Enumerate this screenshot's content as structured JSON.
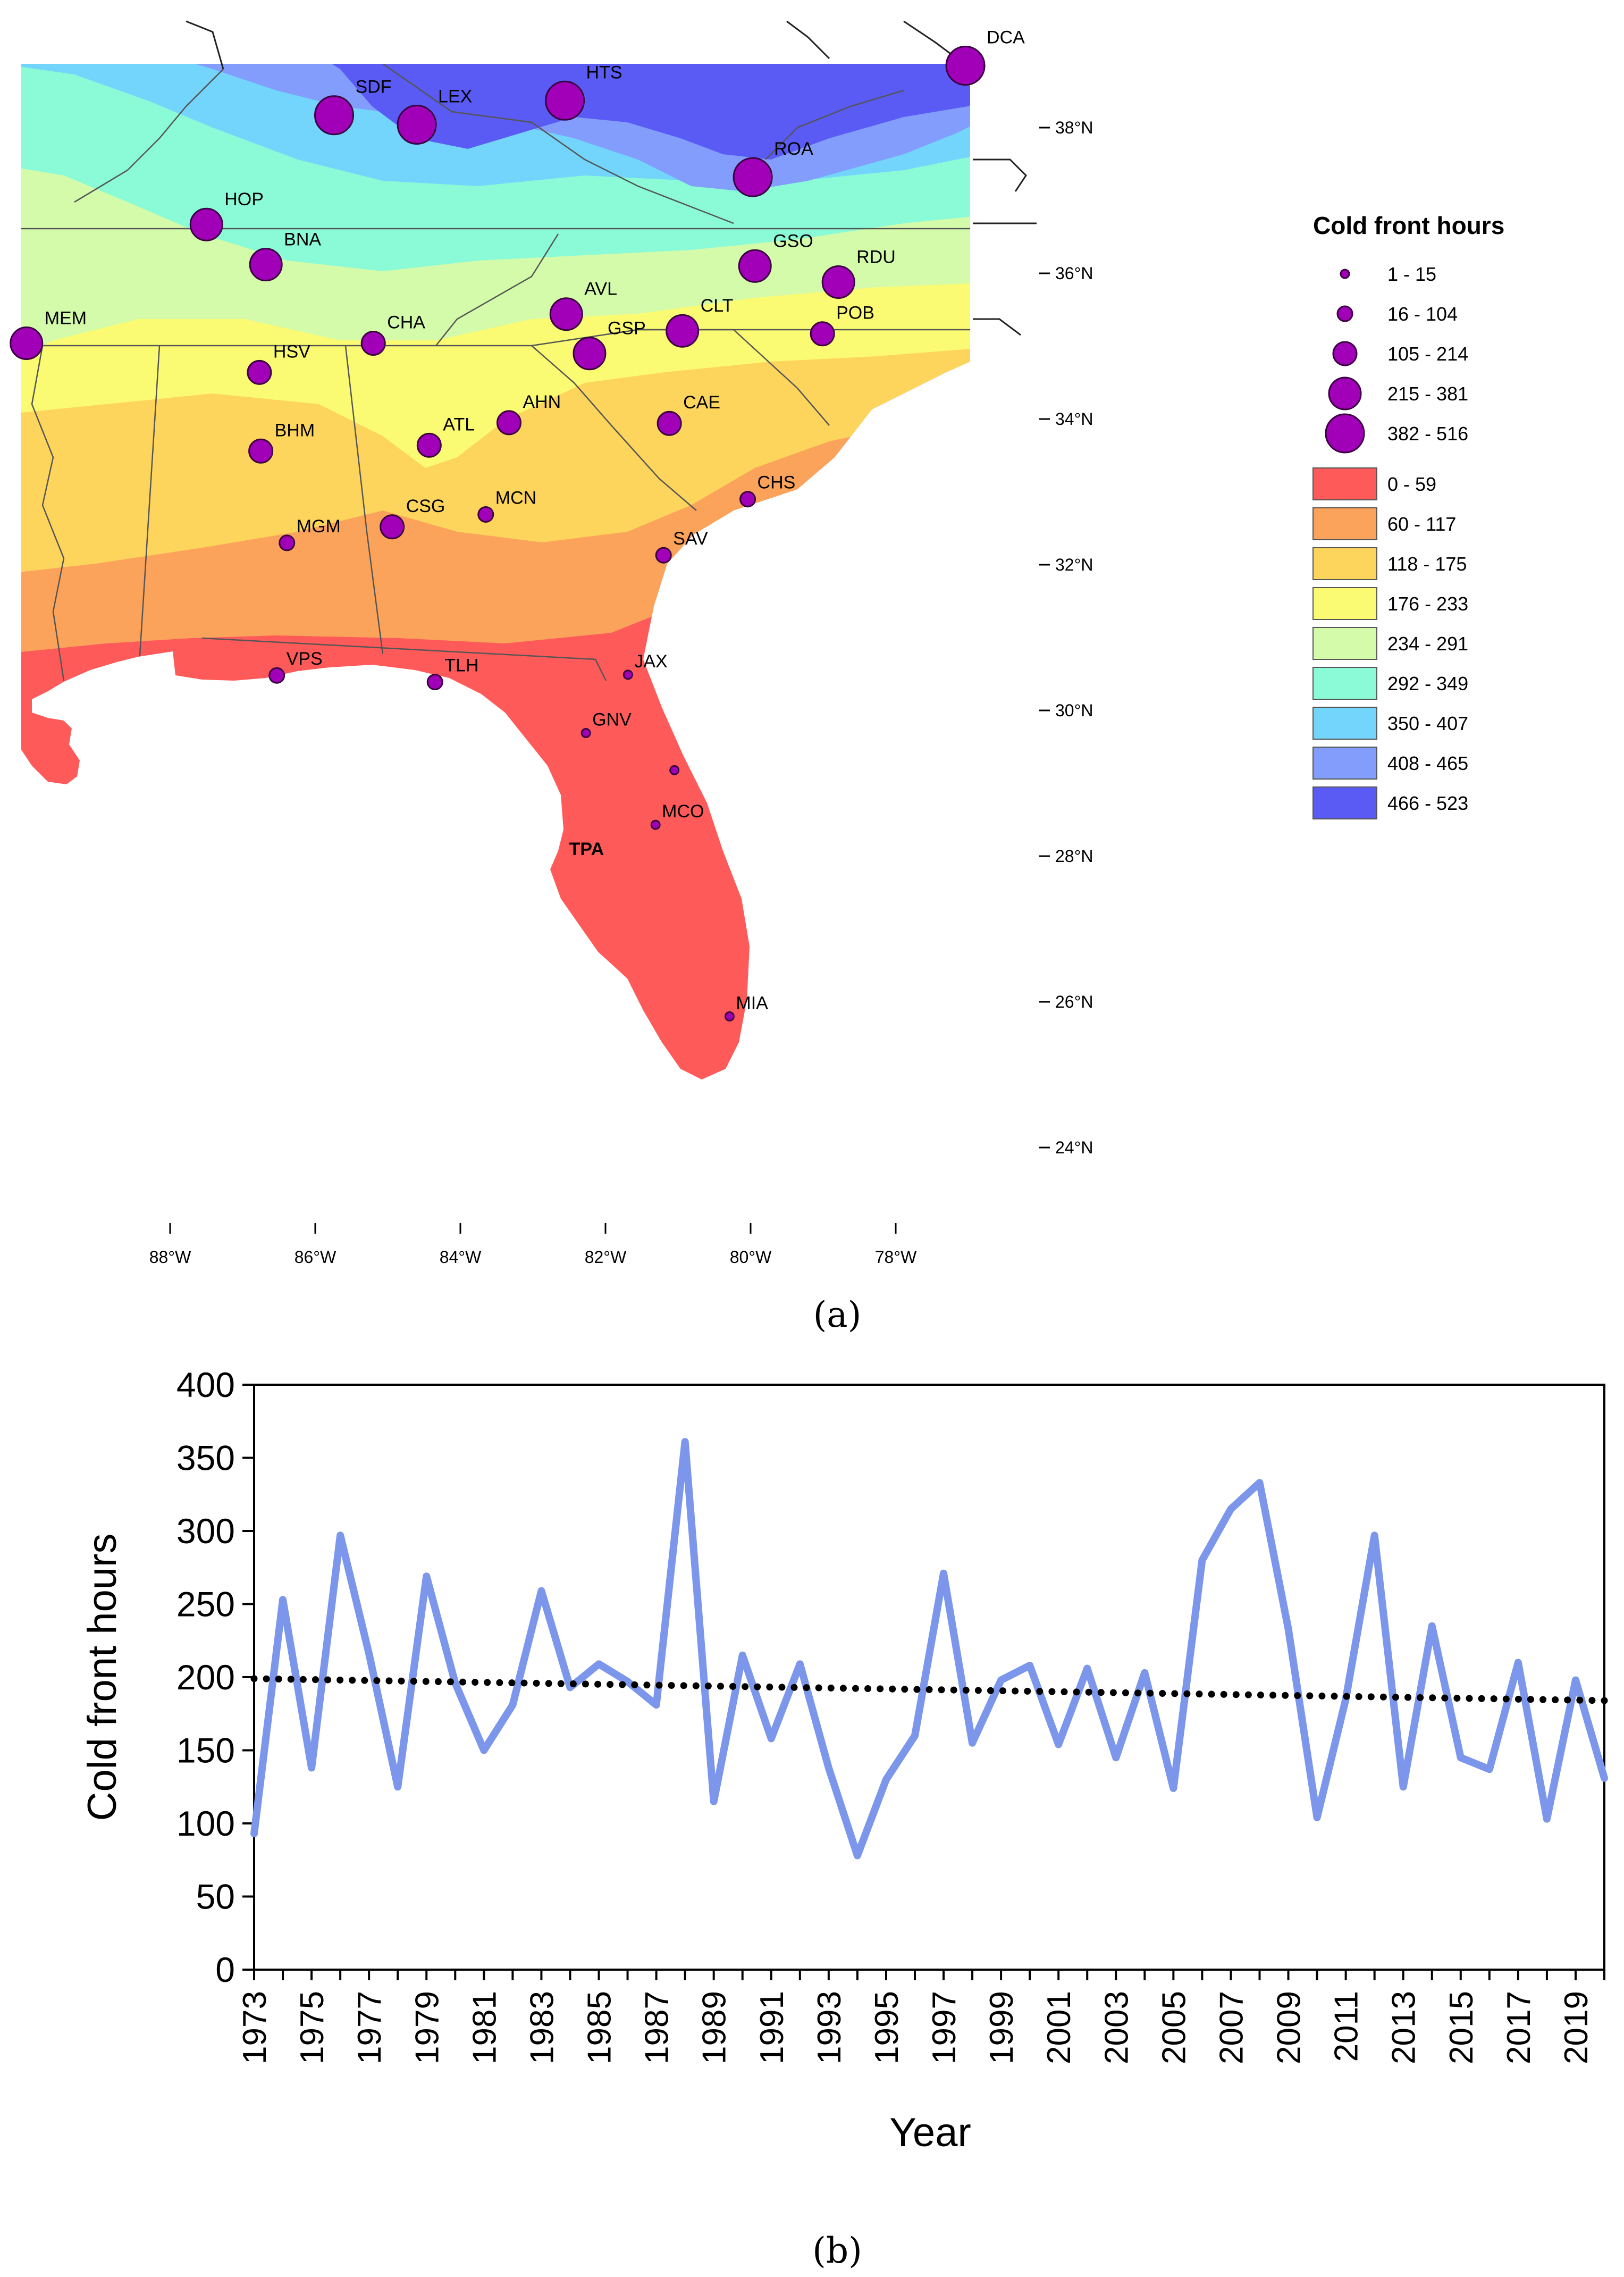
{
  "panel_a": {
    "label_text": "(a)",
    "legend": {
      "title": "Cold front hours",
      "circle_classes": [
        {
          "label": "1 - 15"
        },
        {
          "label": "16 - 104"
        },
        {
          "label": "105 - 214"
        },
        {
          "label": "215 - 381"
        },
        {
          "label": "382 - 516"
        }
      ],
      "color_classes": [
        {
          "label": "0 - 59",
          "color": "#ff5a5a"
        },
        {
          "label": "60 - 117",
          "color": "#fba35a"
        },
        {
          "label": "118 - 175",
          "color": "#fdd55c"
        },
        {
          "label": "176 - 233",
          "color": "#fbfb73"
        },
        {
          "label": "234 - 291",
          "color": "#d3fbaa"
        },
        {
          "label": "292 - 349",
          "color": "#8afbd6"
        },
        {
          "label": "350 - 407",
          "color": "#73d5fb"
        },
        {
          "label": "408 - 465",
          "color": "#829dfb"
        },
        {
          "label": "466 - 523",
          "color": "#5a5af5"
        }
      ]
    },
    "lat_ticks": [
      "38°N",
      "36°N",
      "34°N",
      "32°N",
      "30°N",
      "28°N",
      "26°N",
      "24°N"
    ],
    "lon_ticks": [
      "88°W",
      "86°W",
      "84°W",
      "82°W",
      "80°W",
      "78°W"
    ],
    "stations": [
      {
        "code": "SDF",
        "lon": -85.74,
        "lat": 38.17,
        "size_class": 4
      },
      {
        "code": "LEX",
        "lon": -84.6,
        "lat": 38.04,
        "size_class": 4
      },
      {
        "code": "HTS",
        "lon": -82.56,
        "lat": 38.37,
        "size_class": 4
      },
      {
        "code": "DCA",
        "lon": -77.04,
        "lat": 38.85,
        "size_class": 4
      },
      {
        "code": "ROA",
        "lon": -79.97,
        "lat": 37.32,
        "size_class": 4
      },
      {
        "code": "HOP",
        "lon": -87.5,
        "lat": 36.67,
        "size_class": 3
      },
      {
        "code": "BNA",
        "lon": -86.68,
        "lat": 36.12,
        "size_class": 3
      },
      {
        "code": "GSO",
        "lon": -79.94,
        "lat": 36.1,
        "size_class": 3
      },
      {
        "code": "RDU",
        "lon": -78.79,
        "lat": 35.88,
        "size_class": 3
      },
      {
        "code": "MEM",
        "lon": -89.98,
        "lat": 35.04,
        "size_class": 3
      },
      {
        "code": "CHA",
        "lon": -85.2,
        "lat": 35.04,
        "size_class": 2
      },
      {
        "code": "AVL",
        "lon": -82.54,
        "lat": 35.44,
        "size_class": 3
      },
      {
        "code": "CLT",
        "lon": -80.94,
        "lat": 35.21,
        "size_class": 3
      },
      {
        "code": "GSP",
        "lon": -82.22,
        "lat": 34.9,
        "size_class": 3
      },
      {
        "code": "POB",
        "lon": -79.01,
        "lat": 35.17,
        "size_class": 2
      },
      {
        "code": "HSV",
        "lon": -86.77,
        "lat": 34.64,
        "size_class": 2
      },
      {
        "code": "AHN",
        "lon": -83.33,
        "lat": 33.95,
        "size_class": 2
      },
      {
        "code": "CAE",
        "lon": -81.12,
        "lat": 33.94,
        "size_class": 2
      },
      {
        "code": "ATL",
        "lon": -84.43,
        "lat": 33.64,
        "size_class": 2
      },
      {
        "code": "BHM",
        "lon": -86.75,
        "lat": 33.56,
        "size_class": 2
      },
      {
        "code": "CHS",
        "lon": -80.04,
        "lat": 32.9,
        "size_class": 1
      },
      {
        "code": "MCN",
        "lon": -83.65,
        "lat": 32.69,
        "size_class": 1
      },
      {
        "code": "CSG",
        "lon": -84.94,
        "lat": 32.52,
        "size_class": 2
      },
      {
        "code": "MGM",
        "lon": -86.39,
        "lat": 32.3,
        "size_class": 1
      },
      {
        "code": "SAV",
        "lon": -81.2,
        "lat": 32.13,
        "size_class": 1
      },
      {
        "code": "VPS",
        "lon": -86.53,
        "lat": 30.48,
        "size_class": 1
      },
      {
        "code": "TLH",
        "lon": -84.35,
        "lat": 30.39,
        "size_class": 1
      },
      {
        "code": "JAX",
        "lon": -81.69,
        "lat": 30.49,
        "size_class": 0
      },
      {
        "code": "GNV",
        "lon": -82.27,
        "lat": 29.69,
        "size_class": 0
      },
      {
        "code": "",
        "lon": -81.05,
        "lat": 29.18,
        "size_class": 0
      },
      {
        "code": "MCO",
        "lon": -81.31,
        "lat": 28.43,
        "size_class": 0
      },
      {
        "code": "TPA",
        "lon": -82.53,
        "lat": 27.97,
        "size_class": -1
      },
      {
        "code": "MIA",
        "lon": -80.29,
        "lat": 25.8,
        "size_class": 0
      }
    ]
  },
  "panel_b": {
    "label_text": "(b)",
    "chart_data": {
      "type": "line",
      "xlabel": "Year",
      "ylabel": "Cold front hours",
      "ylim": [
        0,
        400
      ],
      "yticks": [
        0,
        50,
        100,
        150,
        200,
        250,
        300,
        350,
        400
      ],
      "xtick_labels": [
        "1973",
        "1975",
        "1977",
        "1979",
        "1981",
        "1983",
        "1985",
        "1987",
        "1989",
        "1991",
        "1993",
        "1995",
        "1997",
        "1999",
        "2001",
        "2003",
        "2005",
        "2007",
        "2009",
        "2011",
        "2013",
        "2015",
        "2017",
        "2019"
      ],
      "years": [
        1973,
        1974,
        1975,
        1976,
        1977,
        1978,
        1979,
        1980,
        1981,
        1982,
        1983,
        1984,
        1985,
        1986,
        1987,
        1988,
        1989,
        1990,
        1991,
        1992,
        1993,
        1994,
        1995,
        1996,
        1997,
        1998,
        1999,
        2000,
        2001,
        2002,
        2003,
        2004,
        2005,
        2006,
        2007,
        2008,
        2009,
        2010,
        2011,
        2012,
        2013,
        2014,
        2015,
        2016,
        2017,
        2018,
        2019,
        2020
      ],
      "series": [
        {
          "values": [
            93,
            253,
            138,
            297,
            216,
            125,
            269,
            196,
            150,
            181,
            259,
            193,
            209,
            197,
            181,
            361,
            115,
            215,
            158,
            209,
            138,
            78,
            130,
            160,
            271,
            155,
            198,
            208,
            154,
            206,
            145,
            203,
            124,
            280,
            315,
            333,
            233,
            104,
            185,
            297,
            125,
            235,
            145,
            137,
            210,
            103,
            198,
            131
          ],
          "color": "#7b96ea"
        },
        {
          "kind": "trend",
          "values": [
            199,
            184
          ],
          "color": "#000000"
        }
      ],
      "grid": false
    }
  }
}
